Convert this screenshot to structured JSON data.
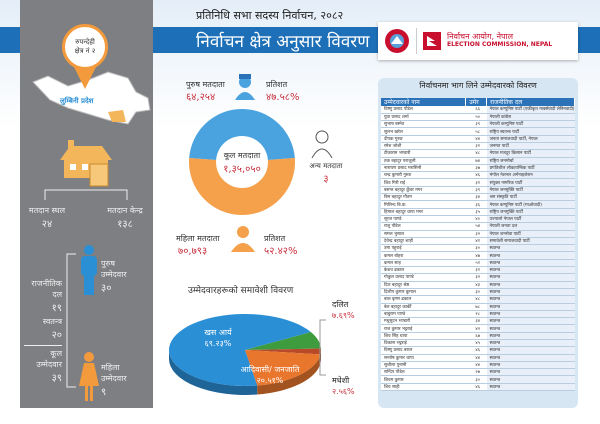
{
  "header": {
    "subtitle": "प्रतिनिधि सभा सदस्य निर्वाचन, २०८२",
    "title": "निर्वाचन क्षेत्र अनुसार विवरण",
    "commission_np": "निर्वाचन आयोग, नेपाल",
    "commission_en": "ELECTION COMMISSION, NEPAL"
  },
  "left": {
    "district": "रुपन्देही",
    "constituency": "क्षेत्र नं २",
    "province": "लुम्बिनी प्रदेश",
    "polling_places_label": "मतदान स्थल",
    "polling_places": "२४",
    "polling_centers_label": "मतदान केन्द्र",
    "polling_centers": "१३८",
    "party_label1": "राजनीतिक",
    "party_label2": "दल",
    "party_count": "१९",
    "independent_label": "स्वतन्त्र",
    "independent_count": "२०",
    "total_label1": "कूल",
    "total_label2": "उम्मेदवार",
    "total_count": "३९",
    "male_cand_label1": "पुरुष",
    "male_cand_label2": "उम्मेदवार",
    "male_cand": "३०",
    "female_cand_label1": "महिला",
    "female_cand_label2": "उम्मेदवार",
    "female_cand": "९"
  },
  "voters": {
    "male_label": "पुरुष मतदाता",
    "male": "६४,२५४",
    "male_pct_label": "प्रतिशत",
    "male_pct": "४७.५८%",
    "male_pct_value": 47.58,
    "total_label": "कूल मतदाता",
    "total": "१,३५,०५०",
    "other_label": "अन्य मतदाता",
    "other": "३",
    "female_label": "महिला मतदाता",
    "female": "७०,७९३",
    "female_pct_label": "प्रतिशत",
    "female_pct": "५२.४२%",
    "female_pct_value": 52.42,
    "colors": {
      "male": "#4aa3df",
      "female": "#f5a04a"
    }
  },
  "chart_data": {
    "type": "pie",
    "title": "उम्मेदवारहरूको समावेशी विवरण",
    "slices": [
      {
        "name": "दलित",
        "label": "७.६९%",
        "value": 7.69,
        "color": "#3e9b3e"
      },
      {
        "name": "मधेशी",
        "label": "२.५६%",
        "value": 2.56,
        "color": "#b84a2a"
      },
      {
        "name": "आदिवासी/ जनजाति",
        "label": "२०.५१%",
        "value": 20.51,
        "color": "#e8762d"
      },
      {
        "name": "खस आर्य",
        "label": "६९.२३%",
        "value": 69.23,
        "color": "#2b8fd6"
      }
    ]
  },
  "candidates": {
    "title": "निर्वाचनमा भाग लिने उम्मेदवारको विवरण",
    "headers": [
      "उम्मेदवारको नाम",
      "उमेर",
      "राजनीतिक दल"
    ],
    "rows": [
      [
        "विष्णु प्रसाद पौडेल",
        "६६",
        "नेपाल कम्युनिष्ट पार्टी (एकीकृत मार्क्सवादी लेनिनवादी)"
      ],
      [
        "युवा प्रसाद शर्मा",
        "५०",
        "नेपाली कांग्रेस"
      ],
      [
        "सुभाष बस्नेत",
        "३९",
        "नेपाली कम्युनिष्ट पार्टी"
      ],
      [
        "सुलभ खरेल",
        "५८",
        "राष्ट्रिय स्वतन्त्र पार्टी"
      ],
      [
        "दीपक गुरुङ",
        "४४",
        "जनता समाजवादी पार्टी, नेपाल"
      ],
      [
        "रमेश जोशी",
        "३१",
        "जनमत पार्टी"
      ],
      [
        "टीकाराम भण्डारी",
        "४८",
        "नेपाल मजदुर किसान पार्टी"
      ],
      [
        "तक बहादुर पराजुली",
        "७४",
        "राष्ट्रिय जनमोर्चा"
      ],
      [
        "नारायण प्रसाद मरासिनी",
        "३७",
        "प्रगतिशील लोकतान्त्रिक पार्टी"
      ],
      [
        "चन्द्र कुमारी गुरुङ",
        "४६",
        "मंगोल नेशनल अर्गनाइजेसन"
      ],
      [
        "शिव गिरी राई",
        "३१",
        "संयुक्त नागरिक पार्टी"
      ],
      [
        "बसन्त बहादुर कुँवर मगर",
        "३९",
        "नेपाल जनमुक्ति पार्टी"
      ],
      [
        "बिम बहादुर गौतम",
        "३४",
        "श्रम संस्कृति पार्टी"
      ],
      [
        "मिलिन्द बि.क.",
        "३६",
        "नेपाल कम्युनिष्ट पार्टी (माओवादी)"
      ],
      [
        "हिमाल बहादुर थापा मगर",
        "३५",
        "राष्ट्रिय जनमुक्ति पार्टी"
      ],
      [
        "सूरज पाण्डे",
        "४०",
        "उज्यालो नेपाल पार्टी"
      ],
      [
        "राजु पौडेल",
        "५४",
        "नेपाली जनता दल"
      ],
      [
        "समल भुसाल",
        "३२",
        "नेपाल जनसेवा पार्टी"
      ],
      [
        "देवेन्द्र बहादुर शाही",
        "४१",
        "समावेशी समाजवादी पार्टी"
      ],
      [
        "उमा पहुराई",
        "३०",
        "स्वतन्त्र"
      ],
      [
        "कमल बोहरा",
        "४७",
        "स्वतन्त्र"
      ],
      [
        "कमल साह",
        "५१",
        "स्वतन्त्र"
      ],
      [
        "केशव ढकाल",
        "३१",
        "स्वतन्त्र"
      ],
      [
        "गोकुल प्रसाद पाण्डे",
        "३२",
        "स्वतन्त्र"
      ],
      [
        "दिल बहादुर श्रेष्ठ",
        "४३",
        "स्वतन्त्र"
      ],
      [
        "दिलीप कुमार कुमाल",
        "३०",
        "स्वतन्त्र"
      ],
      [
        "बाल कृष्ण ढकाल",
        "४८",
        "स्वतन्त्र"
      ],
      [
        "बेल बहादुर कार्की",
        "७८",
        "स्वतन्त्र"
      ],
      [
        "बाबुराम पाण्डे",
        "२८",
        "स्वतन्त्र"
      ],
      [
        "मधुसूदन भण्डारी",
        "३४",
        "स्वतन्त्र"
      ],
      [
        "राज कुमार भट्टराई",
        "४२",
        "स्वतन्त्र"
      ],
      [
        "शिव सिंह थापा",
        "६७",
        "स्वतन्त्र"
      ],
      [
        "विकास भट्टराई",
        "४५",
        "स्वतन्त्र"
      ],
      [
        "विष्णु प्रसाद बराल",
        "४६",
        "स्वतन्त्र"
      ],
      [
        "सन्तोष कुमार थापा",
        "४४",
        "स्वतन्त्र"
      ],
      [
        "सुशीला पुनामी",
        "४४",
        "स्वतन्त्र"
      ],
      [
        "सन्दिप पौडेल",
        "२७",
        "स्वतन्त्र"
      ],
      [
        "शिवम कुमार",
        "३०",
        "स्वतन्त्र"
      ],
      [
        "शिव साही",
        "४६",
        "स्वतन्त्र"
      ]
    ]
  }
}
